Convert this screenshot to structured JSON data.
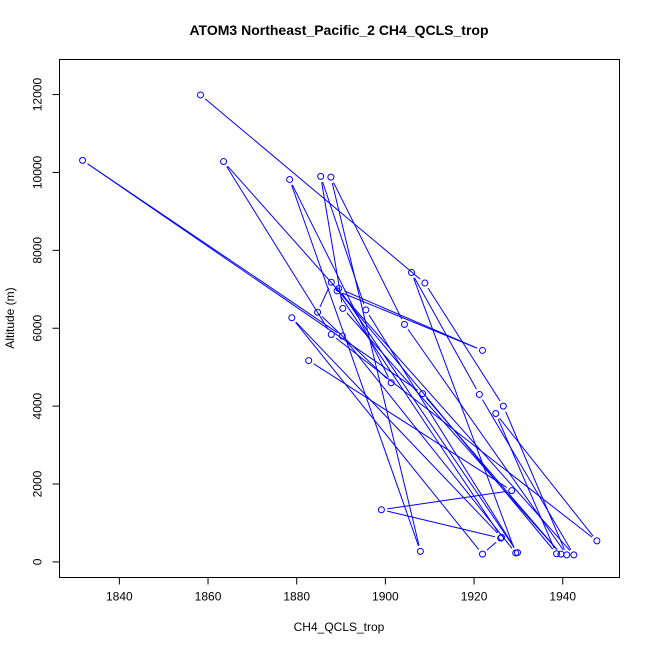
{
  "chart_data": {
    "type": "line",
    "title": "ATOM3 Northeast_Pacific_2 CH4_QCLS_trop",
    "xlabel": "CH4_QCLS_trop",
    "ylabel": "Altitude (m)",
    "xlim": [
      1826.5,
      1952.8
    ],
    "ylim": [
      -400,
      12900
    ],
    "x_ticks": [
      1840,
      1860,
      1880,
      1900,
      1920,
      1940
    ],
    "y_ticks": [
      0,
      2000,
      4000,
      6000,
      8000,
      10000,
      12000
    ],
    "grid": false,
    "series_color": "#0000ff",
    "marker": "open-circle",
    "points": [
      {
        "x": 1858.3,
        "y": 11990
      },
      {
        "x": 1908.9,
        "y": 7160
      },
      {
        "x": 1926.6,
        "y": 4000
      },
      {
        "x": 1940.9,
        "y": 180
      },
      {
        "x": 1904.3,
        "y": 6100
      },
      {
        "x": 1887.7,
        "y": 9880
      },
      {
        "x": 1907.9,
        "y": 270
      },
      {
        "x": 1878.4,
        "y": 9820
      },
      {
        "x": 1901.3,
        "y": 4600
      },
      {
        "x": 1884.7,
        "y": 6410
      },
      {
        "x": 1887.8,
        "y": 7180
      },
      {
        "x": 1938.6,
        "y": 210
      },
      {
        "x": 1924.9,
        "y": 3810
      },
      {
        "x": 1947.7,
        "y": 540
      },
      {
        "x": 1887.8,
        "y": 5840
      },
      {
        "x": 1863.5,
        "y": 10280
      },
      {
        "x": 1942.5,
        "y": 180
      },
      {
        "x": 1921.2,
        "y": 4300
      },
      {
        "x": 1905.9,
        "y": 7430
      },
      {
        "x": 1929.4,
        "y": 230
      },
      {
        "x": 1890.3,
        "y": 5800
      },
      {
        "x": 1831.7,
        "y": 10310
      },
      {
        "x": 1908.4,
        "y": 4320
      },
      {
        "x": 1939.6,
        "y": 200
      },
      {
        "x": 1890.4,
        "y": 6510
      },
      {
        "x": 1885.4,
        "y": 9900
      },
      {
        "x": 1895.6,
        "y": 6470
      },
      {
        "x": 1929.8,
        "y": 240
      },
      {
        "x": 1889.5,
        "y": 7020
      },
      {
        "x": 1921.9,
        "y": 5430
      },
      {
        "x": 1889.1,
        "y": 6960
      },
      {
        "x": 1926.2,
        "y": 630
      },
      {
        "x": 1878.9,
        "y": 6270
      },
      {
        "x": 1921.9,
        "y": 200
      },
      {
        "x": 1926.0,
        "y": 610
      },
      {
        "x": 1899.1,
        "y": 1340
      },
      {
        "x": 1928.5,
        "y": 1830
      },
      {
        "x": 1882.7,
        "y": 5170
      }
    ]
  }
}
